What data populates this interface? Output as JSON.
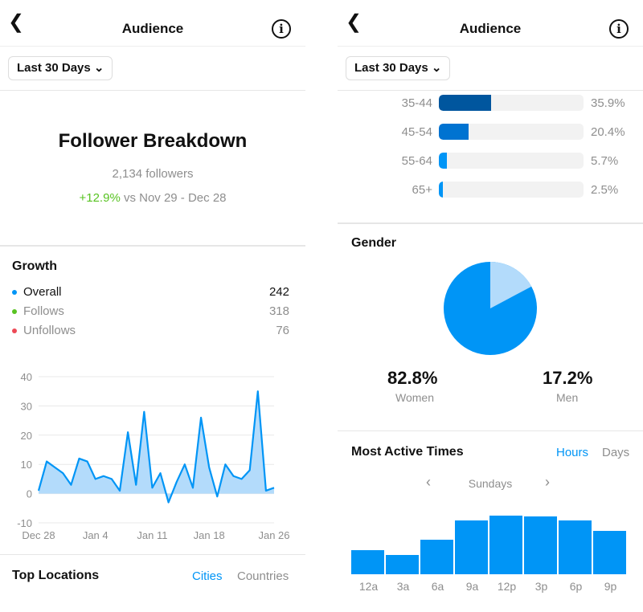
{
  "header": {
    "title": "Audience",
    "range": "Last 30 Days"
  },
  "breakdown": {
    "title": "Follower Breakdown",
    "followers": "2,134 followers",
    "change": "+12.9%",
    "compare": " vs Nov 29 - Dec 28"
  },
  "growth": {
    "title": "Growth",
    "items": [
      {
        "label": "Overall",
        "value": "242",
        "color": "#0095f6"
      },
      {
        "label": "Follows",
        "value": "318",
        "color": "#58c322"
      },
      {
        "label": "Unfollows",
        "value": "76",
        "color": "#ed4956"
      }
    ]
  },
  "chart_data": {
    "type": "area",
    "x_ticks": [
      "Dec 28",
      "Jan 4",
      "Jan 11",
      "Jan 18",
      "Jan 26"
    ],
    "y_ticks": [
      "40",
      "30",
      "20",
      "10",
      "0",
      "-10"
    ],
    "ylim": [
      -10,
      40
    ],
    "grid": true,
    "values": [
      1,
      11,
      9,
      7,
      3,
      12,
      11,
      5,
      6,
      5,
      1,
      21,
      3,
      28,
      2,
      7,
      -3,
      4,
      10,
      2,
      26,
      9,
      -1,
      10,
      6,
      5,
      8,
      35,
      1,
      2
    ],
    "color": "#0095f6"
  },
  "locations": {
    "title": "Top Locations",
    "tabs": [
      "Cities",
      "Countries"
    ]
  },
  "age": [
    {
      "label": "35-44",
      "pct": 35.9,
      "text": "35.9%",
      "color": "#00569e"
    },
    {
      "label": "45-54",
      "pct": 20.4,
      "text": "20.4%",
      "color": "#0073d1"
    },
    {
      "label": "55-64",
      "pct": 5.7,
      "text": "5.7%",
      "color": "#0095f6"
    },
    {
      "label": "65+",
      "pct": 2.5,
      "text": "2.5%",
      "color": "#0095f6"
    }
  ],
  "gender": {
    "title": "Gender",
    "women": {
      "pct": "82.8%",
      "label": "Women",
      "value": 82.8,
      "color": "#0095f6"
    },
    "men": {
      "pct": "17.2%",
      "label": "Men",
      "value": 17.2,
      "color": "#b3dbfb"
    }
  },
  "active": {
    "title": "Most Active Times",
    "tabs": [
      "Hours",
      "Days"
    ],
    "day": "Sundays",
    "hours": [
      "12a",
      "3a",
      "6a",
      "9a",
      "12p",
      "3p",
      "6p",
      "9p"
    ],
    "levels": [
      30,
      24,
      43,
      67,
      73,
      72,
      67,
      54
    ]
  }
}
